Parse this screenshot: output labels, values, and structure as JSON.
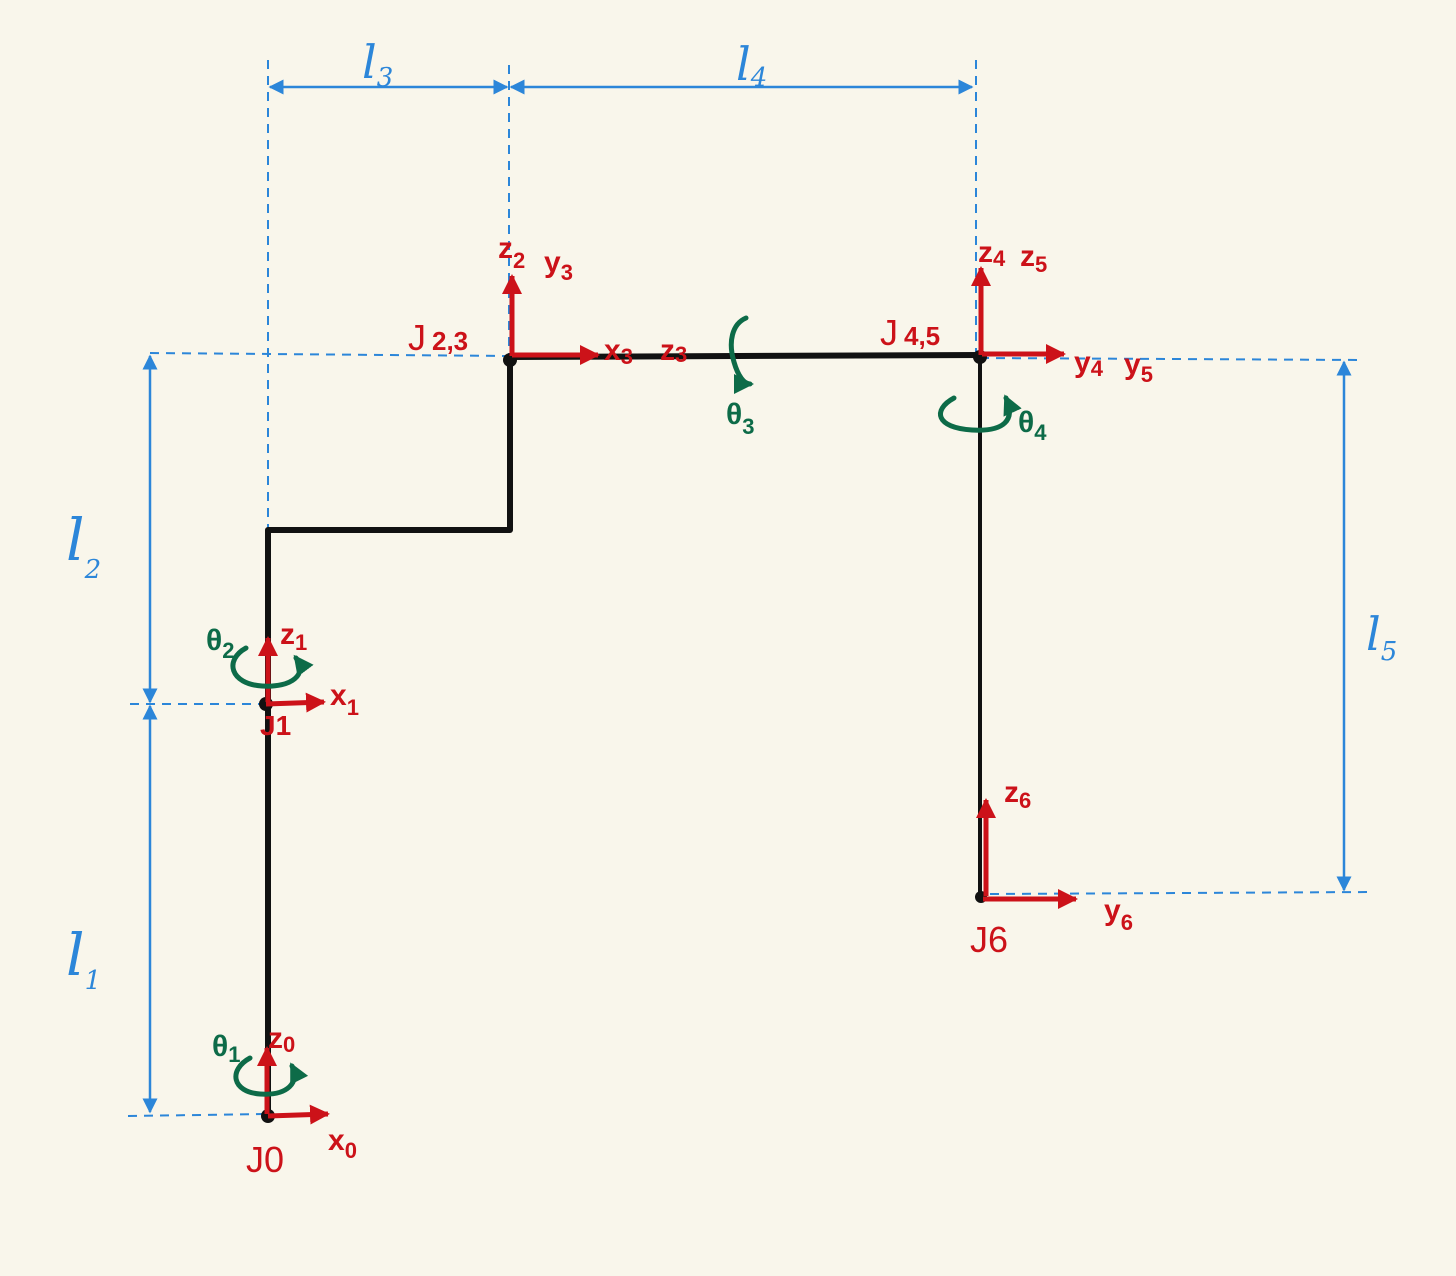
{
  "colors": {
    "background": "#f9f6eb",
    "link": "#111111",
    "axis": "#cc1219",
    "rotation": "#0d6b48",
    "dimension": "#2c86d9"
  },
  "dimensions": {
    "l1": "l",
    "l1_sub": "1",
    "l2": "l",
    "l2_sub": "2",
    "l3": "l",
    "l3_sub": "3",
    "l4": "l",
    "l4_sub": "4",
    "l5": "l",
    "l5_sub": "5"
  },
  "joints": {
    "j0": "J0",
    "j1": "J1",
    "j23_main": "J",
    "j23_sub": "2,3",
    "j45_main": "J",
    "j45_sub": "4,5",
    "j6": "J6"
  },
  "axes": {
    "z0": "z",
    "z0_sub": "0",
    "x0": "x",
    "x0_sub": "0",
    "z1": "z",
    "z1_sub": "1",
    "x1": "x",
    "x1_sub": "1",
    "z2": "z",
    "z2_sub": "2",
    "y3": "y",
    "y3_sub": "3",
    "x3": "x",
    "x3_sub": "3",
    "z3": "z",
    "z3_sub": "3",
    "z4": "z",
    "z4_sub": "4",
    "z5": "z",
    "z5_sub": "5",
    "y4": "y",
    "y4_sub": "4",
    "y5": "y",
    "y5_sub": "5",
    "z6": "z",
    "z6_sub": "6",
    "y6": "y",
    "y6_sub": "6"
  },
  "rotations": {
    "t1": "θ",
    "t1_sub": "1",
    "t2": "θ",
    "t2_sub": "2",
    "t3": "θ",
    "t3_sub": "3",
    "t4": "θ",
    "t4_sub": "4"
  }
}
